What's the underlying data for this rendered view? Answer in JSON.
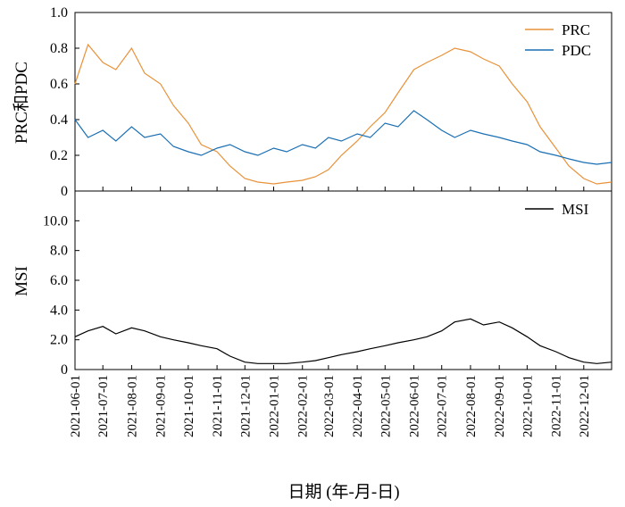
{
  "chart_data": [
    {
      "type": "line",
      "panel": "top",
      "ylabel": "PRC和PDC",
      "ylim": [
        0,
        1.0
      ],
      "yticks": [
        0,
        0.2,
        0.4,
        0.6,
        0.8,
        1.0
      ],
      "ytick_labels": [
        "0",
        "0.2",
        "0.4",
        "0.6",
        "0.8",
        "1.0"
      ],
      "x_range": [
        "2021-06-01",
        "2022-12-31"
      ],
      "legend_position": "top-right",
      "grid": false,
      "series": [
        {
          "name": "PRC",
          "color": "#e8923a",
          "x": [
            "2021-06-01",
            "2021-06-15",
            "2021-07-01",
            "2021-07-15",
            "2021-08-01",
            "2021-08-15",
            "2021-09-01",
            "2021-09-15",
            "2021-10-01",
            "2021-10-15",
            "2021-11-01",
            "2021-11-15",
            "2021-12-01",
            "2021-12-15",
            "2022-01-01",
            "2022-01-15",
            "2022-02-01",
            "2022-02-15",
            "2022-03-01",
            "2022-03-15",
            "2022-04-01",
            "2022-04-15",
            "2022-05-01",
            "2022-05-15",
            "2022-06-01",
            "2022-06-15",
            "2022-07-01",
            "2022-07-15",
            "2022-08-01",
            "2022-08-15",
            "2022-09-01",
            "2022-09-15",
            "2022-10-01",
            "2022-10-15",
            "2022-11-01",
            "2022-11-15",
            "2022-12-01",
            "2022-12-15",
            "2022-12-31"
          ],
          "y": [
            0.6,
            0.82,
            0.72,
            0.68,
            0.8,
            0.66,
            0.6,
            0.48,
            0.38,
            0.26,
            0.22,
            0.14,
            0.07,
            0.05,
            0.04,
            0.05,
            0.06,
            0.08,
            0.12,
            0.2,
            0.28,
            0.36,
            0.44,
            0.55,
            0.68,
            0.72,
            0.76,
            0.8,
            0.78,
            0.74,
            0.7,
            0.6,
            0.5,
            0.36,
            0.24,
            0.14,
            0.07,
            0.04,
            0.05
          ]
        },
        {
          "name": "PDC",
          "color": "#1a6fb3",
          "x": [
            "2021-06-01",
            "2021-06-15",
            "2021-07-01",
            "2021-07-15",
            "2021-08-01",
            "2021-08-15",
            "2021-09-01",
            "2021-09-15",
            "2021-10-01",
            "2021-10-15",
            "2021-11-01",
            "2021-11-15",
            "2021-12-01",
            "2021-12-15",
            "2022-01-01",
            "2022-01-15",
            "2022-02-01",
            "2022-02-15",
            "2022-03-01",
            "2022-03-15",
            "2022-04-01",
            "2022-04-15",
            "2022-05-01",
            "2022-05-15",
            "2022-06-01",
            "2022-06-15",
            "2022-07-01",
            "2022-07-15",
            "2022-08-01",
            "2022-08-15",
            "2022-09-01",
            "2022-09-15",
            "2022-10-01",
            "2022-10-15",
            "2022-11-01",
            "2022-11-15",
            "2022-12-01",
            "2022-12-15",
            "2022-12-31"
          ],
          "y": [
            0.4,
            0.3,
            0.34,
            0.28,
            0.36,
            0.3,
            0.32,
            0.25,
            0.22,
            0.2,
            0.24,
            0.26,
            0.22,
            0.2,
            0.24,
            0.22,
            0.26,
            0.24,
            0.3,
            0.28,
            0.32,
            0.3,
            0.38,
            0.36,
            0.45,
            0.4,
            0.34,
            0.3,
            0.34,
            0.32,
            0.3,
            0.28,
            0.26,
            0.22,
            0.2,
            0.18,
            0.16,
            0.15,
            0.16
          ]
        }
      ]
    },
    {
      "type": "line",
      "panel": "bottom",
      "ylabel": "MSI",
      "ylim": [
        0,
        12
      ],
      "yticks": [
        0,
        2,
        4,
        6,
        8,
        10
      ],
      "ytick_labels": [
        "0",
        "2.0",
        "4.0",
        "6.0",
        "8.0",
        "10.0"
      ],
      "x_range": [
        "2021-06-01",
        "2022-12-31"
      ],
      "legend_position": "top-right",
      "grid": false,
      "series": [
        {
          "name": "MSI",
          "color": "#000000",
          "x": [
            "2021-06-01",
            "2021-06-15",
            "2021-07-01",
            "2021-07-15",
            "2021-08-01",
            "2021-08-15",
            "2021-09-01",
            "2021-09-15",
            "2021-10-01",
            "2021-10-15",
            "2021-11-01",
            "2021-11-15",
            "2021-12-01",
            "2021-12-15",
            "2022-01-01",
            "2022-01-15",
            "2022-02-01",
            "2022-02-15",
            "2022-03-01",
            "2022-03-15",
            "2022-04-01",
            "2022-04-15",
            "2022-05-01",
            "2022-05-15",
            "2022-06-01",
            "2022-06-15",
            "2022-07-01",
            "2022-07-15",
            "2022-08-01",
            "2022-08-15",
            "2022-09-01",
            "2022-09-15",
            "2022-10-01",
            "2022-10-15",
            "2022-11-01",
            "2022-11-15",
            "2022-12-01",
            "2022-12-15",
            "2022-12-31"
          ],
          "y": [
            2.2,
            2.6,
            2.9,
            2.4,
            2.8,
            2.6,
            2.2,
            2.0,
            1.8,
            1.6,
            1.4,
            0.9,
            0.5,
            0.4,
            0.4,
            0.4,
            0.5,
            0.6,
            0.8,
            1.0,
            1.2,
            1.4,
            1.6,
            1.8,
            2.0,
            2.2,
            2.6,
            3.2,
            3.4,
            3.0,
            3.2,
            2.8,
            2.2,
            1.6,
            1.2,
            0.8,
            0.5,
            0.4,
            0.5
          ]
        }
      ]
    }
  ],
  "x_tick_labels": [
    "2021-06-01",
    "2021-07-01",
    "2021-08-01",
    "2021-09-01",
    "2021-10-01",
    "2021-11-01",
    "2021-12-01",
    "2022-01-01",
    "2022-02-01",
    "2022-03-01",
    "2022-04-01",
    "2022-05-01",
    "2022-06-01",
    "2022-07-01",
    "2022-08-01",
    "2022-09-01",
    "2022-10-01",
    "2022-11-01",
    "2022-12-01"
  ],
  "xlabel": "日期 (年-月-日)"
}
